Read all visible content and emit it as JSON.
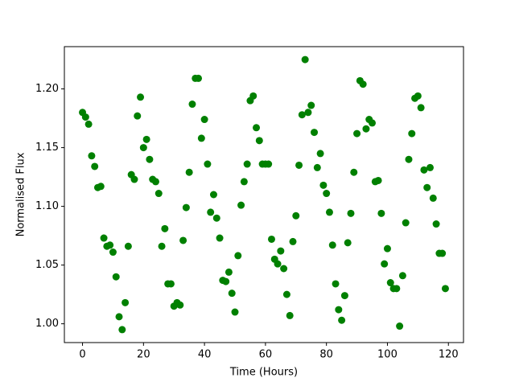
{
  "chart_data": {
    "type": "scatter",
    "xlabel": "Time (Hours)",
    "ylabel": "Normalised Flux",
    "color": "#008000",
    "xlim": [
      -5.95,
      124.95
    ],
    "ylim": [
      0.984,
      1.236
    ],
    "xticks": [
      0,
      20,
      40,
      60,
      80,
      100,
      120
    ],
    "yticks": [
      {
        "value": 1.0,
        "label": "1.00"
      },
      1.05,
      {
        "value": 1.1,
        "label": "1.10"
      },
      1.15,
      {
        "value": 1.2,
        "label": "1.20"
      }
    ],
    "x": [
      0,
      1,
      2,
      3,
      4,
      5,
      6,
      7,
      8,
      9,
      10,
      11,
      12,
      13,
      14,
      15,
      16,
      17,
      18,
      19,
      20,
      21,
      22,
      23,
      24,
      25,
      26,
      27,
      28,
      29,
      30,
      31,
      32,
      33,
      34,
      35,
      36,
      37,
      38,
      39,
      40,
      41,
      42,
      43,
      44,
      45,
      46,
      47,
      48,
      49,
      50,
      51,
      52,
      53,
      54,
      55,
      56,
      57,
      58,
      59,
      60,
      61,
      62,
      63,
      64,
      65,
      66,
      67,
      68,
      69,
      70,
      71,
      72,
      73,
      74,
      75,
      76,
      77,
      78,
      79,
      80,
      81,
      82,
      83,
      84,
      85,
      86,
      87,
      88,
      89,
      90,
      91,
      92,
      93,
      94,
      95,
      96,
      97,
      98,
      99,
      100,
      101,
      102,
      103,
      104,
      105,
      106,
      107,
      108,
      109,
      110,
      111,
      112,
      113,
      114,
      115,
      116,
      117,
      118,
      119
    ],
    "values": [
      1.18,
      1.176,
      1.17,
      1.143,
      1.134,
      1.116,
      1.117,
      1.073,
      1.066,
      1.067,
      1.061,
      1.04,
      1.006,
      0.995,
      1.018,
      1.066,
      1.127,
      1.123,
      1.177,
      1.193,
      1.15,
      1.157,
      1.14,
      1.123,
      1.121,
      1.111,
      1.066,
      1.081,
      1.034,
      1.034,
      1.015,
      1.018,
      1.016,
      1.071,
      1.099,
      1.129,
      1.187,
      1.209,
      1.209,
      1.158,
      1.174,
      1.136,
      1.095,
      1.11,
      1.09,
      1.073,
      1.037,
      1.036,
      1.044,
      1.026,
      1.01,
      1.058,
      1.101,
      1.121,
      1.136,
      1.19,
      1.194,
      1.167,
      1.156,
      1.136,
      1.136,
      1.136,
      1.072,
      1.055,
      1.051,
      1.062,
      1.047,
      1.025,
      1.007,
      1.07,
      1.092,
      1.135,
      1.178,
      1.225,
      1.18,
      1.186,
      1.163,
      1.133,
      1.145,
      1.118,
      1.111,
      1.095,
      1.067,
      1.034,
      1.012,
      1.003,
      1.024,
      1.069,
      1.094,
      1.129,
      1.162,
      1.207,
      1.204,
      1.166,
      1.174,
      1.171,
      1.121,
      1.122,
      1.094,
      1.051,
      1.064,
      1.035,
      1.03,
      1.03,
      0.998,
      1.041,
      1.086,
      1.14,
      1.162,
      1.192,
      1.194,
      1.184,
      1.131,
      1.116,
      1.133,
      1.107,
      1.085,
      1.06,
      1.06,
      1.03
    ]
  }
}
